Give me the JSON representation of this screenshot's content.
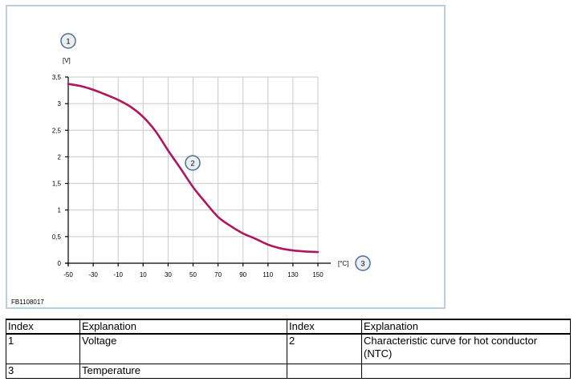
{
  "figure": {
    "id": "FB1108017",
    "unit_y": "[V]",
    "unit_x": "[°C]",
    "callouts": {
      "y_axis": "1",
      "curve": "2",
      "x_axis": "3"
    }
  },
  "chart_data": {
    "type": "line",
    "title": "",
    "xlabel": "[°C]",
    "ylabel": "[V]",
    "xlim": [
      -50,
      150
    ],
    "ylim": [
      0,
      3.5
    ],
    "x_ticks": [
      -50,
      -30,
      -10,
      10,
      30,
      50,
      70,
      90,
      110,
      130,
      150
    ],
    "x_tick_labels": [
      "-50",
      "-30",
      "-10",
      "10",
      "30",
      "50",
      "70",
      "90",
      "110",
      "130",
      "150"
    ],
    "y_ticks": [
      0,
      0.5,
      1,
      1.5,
      2,
      2.5,
      3,
      3.5
    ],
    "y_tick_labels": [
      "0",
      "0,5",
      "1",
      "1,5",
      "2",
      "2,5",
      "3",
      "3,5"
    ],
    "grid": true,
    "series": [
      {
        "x": [
          -50,
          -40,
          -30,
          -20,
          -10,
          0,
          10,
          20,
          30,
          40,
          50,
          60,
          70,
          80,
          90,
          100,
          110,
          120,
          130,
          140,
          150
        ],
        "y": [
          3.37,
          3.33,
          3.26,
          3.17,
          3.07,
          2.94,
          2.75,
          2.48,
          2.12,
          1.78,
          1.43,
          1.14,
          0.87,
          0.7,
          0.56,
          0.46,
          0.35,
          0.28,
          0.24,
          0.22,
          0.21
        ]
      }
    ],
    "line_color": "#b0155f"
  },
  "legend_table": {
    "headers": [
      "Index",
      "Explanation",
      "Index",
      "Explanation"
    ],
    "rows": [
      [
        "1",
        "Voltage",
        "2",
        "Characteristic curve for hot conductor (NTC)"
      ],
      [
        "3",
        "Temperature",
        "",
        ""
      ]
    ]
  }
}
